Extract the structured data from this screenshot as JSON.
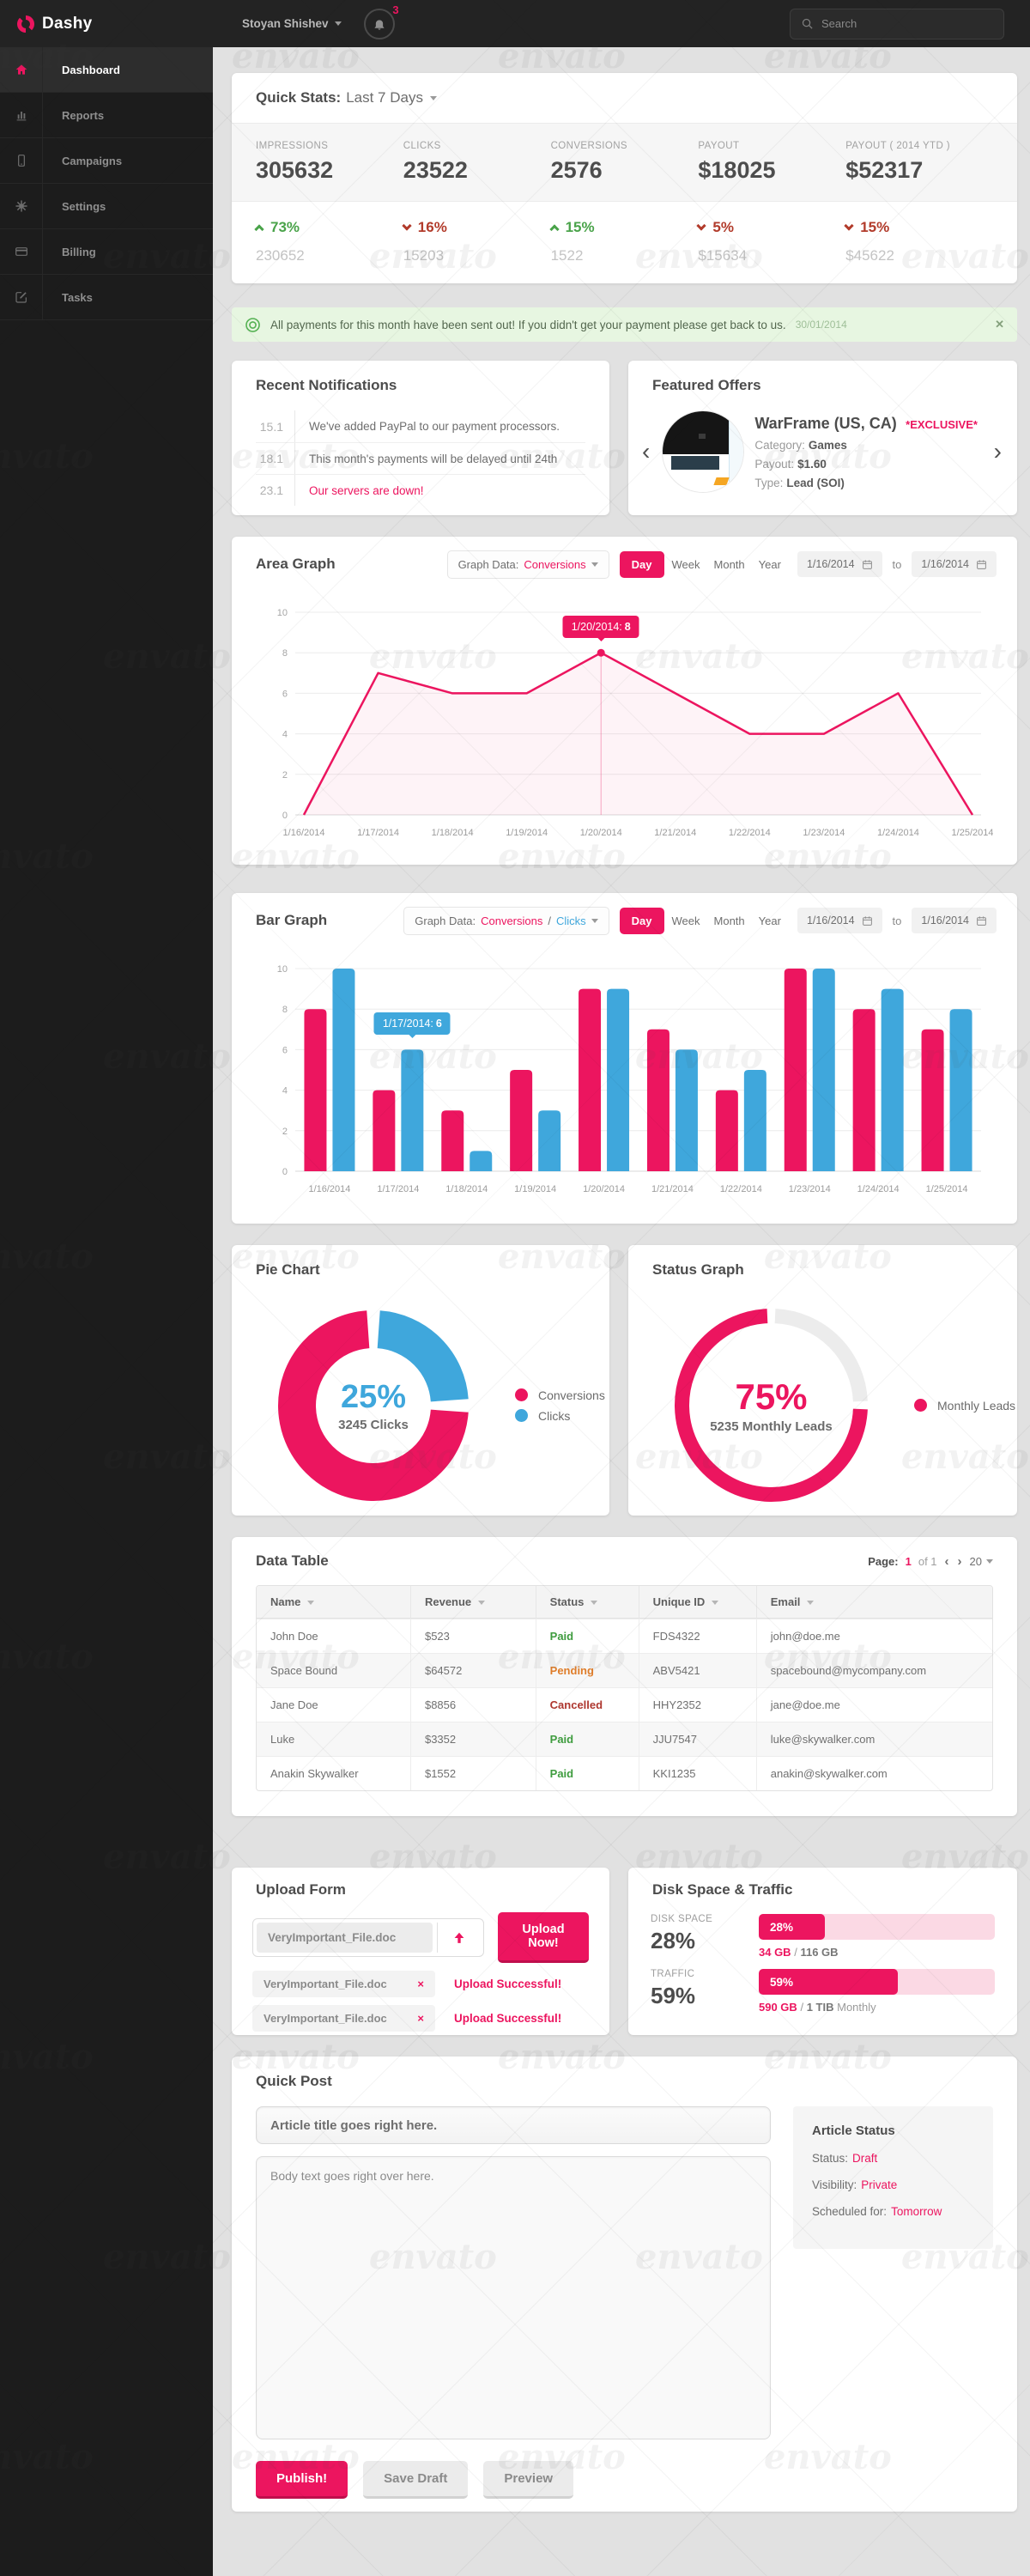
{
  "watermark": {
    "text": "envato"
  },
  "topbar": {
    "logo": "Dashy",
    "user": "Stoyan Shishev",
    "notifications_count": "3",
    "search_placeholder": "Search"
  },
  "sidebar": {
    "items": [
      {
        "label": "Dashboard",
        "icon": "home",
        "state": "active"
      },
      {
        "label": "Reports",
        "icon": "reports",
        "state": ""
      },
      {
        "label": "Campaigns",
        "icon": "campaigns",
        "state": ""
      },
      {
        "label": "Settings",
        "icon": "settings",
        "state": ""
      },
      {
        "label": "Billing",
        "icon": "billing",
        "state": ""
      },
      {
        "label": "Tasks",
        "icon": "tasks",
        "state": ""
      }
    ]
  },
  "quick_stats": {
    "title": "Quick Stats:",
    "range": "Last 7 Days",
    "stats": [
      {
        "label": "IMPRESSIONS",
        "value": "305632",
        "dir": "up",
        "change": "73%",
        "prev": "230652"
      },
      {
        "label": "CLICKS",
        "value": "23522",
        "dir": "down",
        "change": "16%",
        "prev": "15203"
      },
      {
        "label": "CONVERSIONS",
        "value": "2576",
        "dir": "up",
        "change": "15%",
        "prev": "1522"
      },
      {
        "label": "PAYOUT",
        "value": "$18025",
        "dir": "down",
        "change": "5%",
        "prev": "$15634"
      },
      {
        "label": "PAYOUT ( 2014 YTD )",
        "value": "$52317",
        "dir": "down",
        "change": "15%",
        "prev": "$45622"
      }
    ]
  },
  "alert": {
    "message": "All payments for this month have been sent out! If you didn't get your payment please get back to us.",
    "date": "30/01/2014",
    "close": "✕"
  },
  "notifications": {
    "title": "Recent Notifications",
    "items": [
      {
        "date": "15.1",
        "text": "We've added PayPal to our payment processors.",
        "state": ""
      },
      {
        "date": "18.1",
        "text": "This month's payments will be delayed until 24th",
        "state": ""
      },
      {
        "date": "23.1",
        "text": "Our servers are down!",
        "state": "urgent"
      }
    ]
  },
  "offers": {
    "title": "Featured Offers",
    "prev": "‹",
    "next": "›",
    "name": "WarFrame (US, CA)",
    "badge": "*EXCLUSIVE*",
    "fields": [
      {
        "label": "Category:",
        "value": "Games"
      },
      {
        "label": "Payout:",
        "value": "$1.60"
      },
      {
        "label": "Type:",
        "value": "Lead (SOI)"
      }
    ]
  },
  "area_graph": {
    "title": "Area Graph",
    "control_label": "Graph Data:",
    "control_value": "Conversions",
    "periods": [
      {
        "label": "Day",
        "state": "active"
      },
      {
        "label": "Week",
        "state": ""
      },
      {
        "label": "Month",
        "state": ""
      },
      {
        "label": "Year",
        "state": ""
      }
    ],
    "date_from": "1/16/2014",
    "to": "to",
    "date_to": "1/16/2014",
    "chart": {
      "type": "area",
      "x": [
        "1/16/2014",
        "1/17/2014",
        "1/18/2014",
        "1/19/2014",
        "1/20/2014",
        "1/21/2014",
        "1/22/2014",
        "1/23/2014",
        "1/24/2014",
        "1/25/2014"
      ],
      "series": [
        {
          "name": "Conversions",
          "color": "#ec155f",
          "values": [
            0,
            7,
            6,
            6,
            8,
            6,
            4,
            4,
            6,
            0
          ]
        }
      ],
      "ylim": [
        0,
        10
      ],
      "yticks": [
        0,
        2,
        4,
        6,
        8,
        10
      ],
      "tooltip": {
        "index": 4,
        "label": "1/20/2014:",
        "value": "8"
      }
    }
  },
  "bar_graph": {
    "title": "Bar Graph",
    "control_label": "Graph Data:",
    "control_value_1": "Conversions",
    "control_sep": "/",
    "control_value_2": "Clicks",
    "periods": [
      {
        "label": "Day",
        "state": "active"
      },
      {
        "label": "Week",
        "state": ""
      },
      {
        "label": "Month",
        "state": ""
      },
      {
        "label": "Year",
        "state": ""
      }
    ],
    "date_from": "1/16/2014",
    "to": "to",
    "date_to": "1/16/2014",
    "chart": {
      "type": "bar",
      "x": [
        "1/16/2014",
        "1/17/2014",
        "1/18/2014",
        "1/19/2014",
        "1/20/2014",
        "1/21/2014",
        "1/22/2014",
        "1/23/2014",
        "1/24/2014",
        "1/25/2014"
      ],
      "series": [
        {
          "name": "Conversions",
          "color": "#ec155f",
          "values": [
            8,
            4,
            3,
            5,
            9,
            7,
            4,
            10,
            8,
            7
          ]
        },
        {
          "name": "Clicks",
          "color": "#3fa7dc",
          "values": [
            10,
            6,
            1,
            3,
            9,
            6,
            5,
            10,
            9,
            8
          ]
        }
      ],
      "ylim": [
        0,
        10
      ],
      "yticks": [
        0,
        2,
        4,
        6,
        8,
        10
      ],
      "tooltip": {
        "series": 1,
        "index": 1,
        "label": "1/17/2014:",
        "value": "6"
      }
    }
  },
  "pie_chart": {
    "title": "Pie Chart",
    "type": "pie",
    "percent_label": "25%",
    "sub_label": "3245 Clicks",
    "slices": [
      {
        "name": "Clicks",
        "value": 25,
        "color": "#3fa7dc"
      },
      {
        "name": "Conversions",
        "value": 75,
        "color": "#ec155f"
      }
    ],
    "legend": [
      {
        "label": "Conversions",
        "color": "#ec155f"
      },
      {
        "label": "Clicks",
        "color": "#3fa7dc"
      }
    ]
  },
  "status_graph": {
    "title": "Status Graph",
    "type": "donut",
    "percent_label": "75%",
    "sub_label": "5235 Monthly Leads",
    "segments": [
      {
        "name": "rest",
        "value": 25,
        "color": "#ececec"
      },
      {
        "name": "Monthly Leads",
        "value": 75,
        "color": "#ec155f"
      }
    ],
    "legend": [
      {
        "label": "Monthly Leads",
        "color": "#ec155f"
      }
    ]
  },
  "data_table": {
    "title": "Data Table",
    "page_label": "Page:",
    "page": "1",
    "of_label": "of 1",
    "prev": "‹",
    "next": "›",
    "page_size": "20",
    "columns": [
      {
        "label": "Name"
      },
      {
        "label": "Revenue"
      },
      {
        "label": "Status"
      },
      {
        "label": "Unique ID"
      },
      {
        "label": "Email"
      }
    ],
    "rows": [
      {
        "name": "John Doe",
        "revenue": "$523",
        "status": "Paid",
        "status_class": "st-paid",
        "uid": "FDS4322",
        "email": "john@doe.me"
      },
      {
        "name": "Space Bound",
        "revenue": "$64572",
        "status": "Pending",
        "status_class": "st-pending",
        "uid": "ABV5421",
        "email": "spacebound@mycompany.com"
      },
      {
        "name": "Jane Doe",
        "revenue": "$8856",
        "status": "Cancelled",
        "status_class": "st-cancelled",
        "uid": "HHY2352",
        "email": "jane@doe.me"
      },
      {
        "name": "Luke",
        "revenue": "$3352",
        "status": "Paid",
        "status_class": "st-paid",
        "uid": "JJU7547",
        "email": "luke@skywalker.com"
      },
      {
        "name": "Anakin Skywalker",
        "revenue": "$1552",
        "status": "Paid",
        "status_class": "st-paid",
        "uid": "KKI1235",
        "email": "anakin@skywalker.com"
      }
    ]
  },
  "upload": {
    "title": "Upload Form",
    "file_value": "VeryImportant_File.doc",
    "button": "Upload Now!",
    "files": [
      {
        "name": "VeryImportant_File.doc",
        "remove": "×",
        "status": "Upload Successful!"
      },
      {
        "name": "VeryImportant_File.doc",
        "remove": "×",
        "status": "Upload Successful!"
      }
    ]
  },
  "disk": {
    "title": "Disk Space & Traffic",
    "meters": [
      {
        "label": "DISK SPACE",
        "percent": "28%",
        "value": 28,
        "used": "34 GB",
        "sep": "/",
        "total": "116 GB",
        "suffix": ""
      },
      {
        "label": "TRAFFIC",
        "percent": "59%",
        "value": 59,
        "used": "590 GB",
        "sep": "/",
        "total": "1 TIB",
        "suffix": "Monthly"
      }
    ]
  },
  "quick_post": {
    "title": "Quick Post",
    "title_value": "Article title goes right here.",
    "body_value": "Body text goes right over here.",
    "status_box": {
      "title": "Article Status",
      "rows": [
        {
          "label": "Status:",
          "value": "Draft"
        },
        {
          "label": "Visibility:",
          "value": "Private"
        },
        {
          "label": "Scheduled for:",
          "value": "Tomorrow"
        }
      ]
    },
    "buttons": [
      {
        "label": "Publish!"
      },
      {
        "label": "Save Draft"
      },
      {
        "label": "Preview"
      }
    ]
  }
}
